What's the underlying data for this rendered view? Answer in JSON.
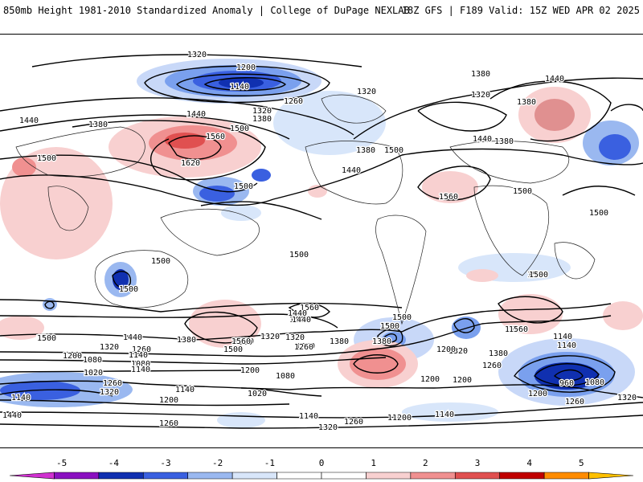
{
  "header": {
    "left_title": "850mb Height 1981-2010 Standardized Anomaly | College of DuPage NEXLAB",
    "right_title": "18Z GFS | F189 Valid: 15Z WED APR 02 2025"
  },
  "colorbar": {
    "ticks": [
      "-5",
      "-4",
      "-3",
      "-2",
      "-1",
      "0",
      "1",
      "2",
      "3",
      "4",
      "5"
    ],
    "colors": [
      "#d030d0",
      "#8a10c0",
      "#1030b0",
      "#3a60e0",
      "#9ab8f0",
      "#d8e6fa",
      "#ffffff",
      "#ffffff",
      "#f8d0d0",
      "#f09090",
      "#e05050",
      "#c00000",
      "#ff8c00",
      "#ffc000"
    ]
  },
  "map": {
    "contour_labels": [
      {
        "text": "1320"
      },
      {
        "text": "1200"
      },
      {
        "text": "1140"
      },
      {
        "text": "1260"
      },
      {
        "text": "1320"
      },
      {
        "text": "1380"
      },
      {
        "text": "1440"
      },
      {
        "text": "1380"
      },
      {
        "text": "1440"
      },
      {
        "text": "1380"
      },
      {
        "text": "1320"
      },
      {
        "text": "1320"
      },
      {
        "text": "1440"
      },
      {
        "text": "1380"
      },
      {
        "text": "1500"
      },
      {
        "text": "1560"
      },
      {
        "text": "1620"
      },
      {
        "text": "1500"
      },
      {
        "text": "1440"
      },
      {
        "text": "1380"
      },
      {
        "text": "1500"
      },
      {
        "text": "1440"
      },
      {
        "text": "1380"
      },
      {
        "text": "1500"
      },
      {
        "text": "1500"
      },
      {
        "text": "1560"
      },
      {
        "text": "1500"
      },
      {
        "text": "1500"
      },
      {
        "text": "1500"
      },
      {
        "text": "1500"
      },
      {
        "text": "1560"
      },
      {
        "text": "1500"
      },
      {
        "text": "1440"
      },
      {
        "text": "1380"
      },
      {
        "text": "1500"
      },
      {
        "text": "1320"
      },
      {
        "text": "1260"
      },
      {
        "text": "1380"
      },
      {
        "text": "1500"
      },
      {
        "text": "1440"
      },
      {
        "text": "1560"
      },
      {
        "text": "1500"
      },
      {
        "text": "1380"
      },
      {
        "text": "1260"
      },
      {
        "text": "1320"
      },
      {
        "text": "1140"
      },
      {
        "text": "1200"
      },
      {
        "text": "1080"
      },
      {
        "text": "1140"
      },
      {
        "text": "960"
      },
      {
        "text": "1080"
      },
      {
        "text": "1200"
      },
      {
        "text": "1260"
      },
      {
        "text": "1320"
      },
      {
        "text": "1500"
      },
      {
        "text": "1200"
      },
      {
        "text": "1320"
      },
      {
        "text": "1260"
      },
      {
        "text": "1140"
      },
      {
        "text": "1080"
      },
      {
        "text": "1020"
      },
      {
        "text": "1140"
      },
      {
        "text": "1260"
      },
      {
        "text": "1320"
      },
      {
        "text": "1200"
      },
      {
        "text": "1440"
      },
      {
        "text": "1380"
      },
      {
        "text": "1560"
      },
      {
        "text": "1500"
      },
      {
        "text": "1440"
      },
      {
        "text": "1320"
      },
      {
        "text": "1260"
      },
      {
        "text": "1200"
      },
      {
        "text": "1080"
      },
      {
        "text": "1020"
      },
      {
        "text": "1200"
      },
      {
        "text": "1140"
      },
      {
        "text": "1260"
      },
      {
        "text": "1200"
      },
      {
        "text": "1140"
      },
      {
        "text": "1320"
      },
      {
        "text": "1080"
      },
      {
        "text": "1260"
      },
      {
        "text": "1140"
      },
      {
        "text": "1320"
      },
      {
        "text": "1200"
      },
      {
        "text": "1440"
      },
      {
        "text": "1020"
      },
      {
        "text": "1140"
      },
      {
        "text": "1560"
      },
      {
        "text": "1560"
      },
      {
        "text": "1500"
      },
      {
        "text": "1500"
      },
      {
        "text": "1500"
      },
      {
        "text": "1380"
      },
      {
        "text": "1200"
      }
    ]
  }
}
